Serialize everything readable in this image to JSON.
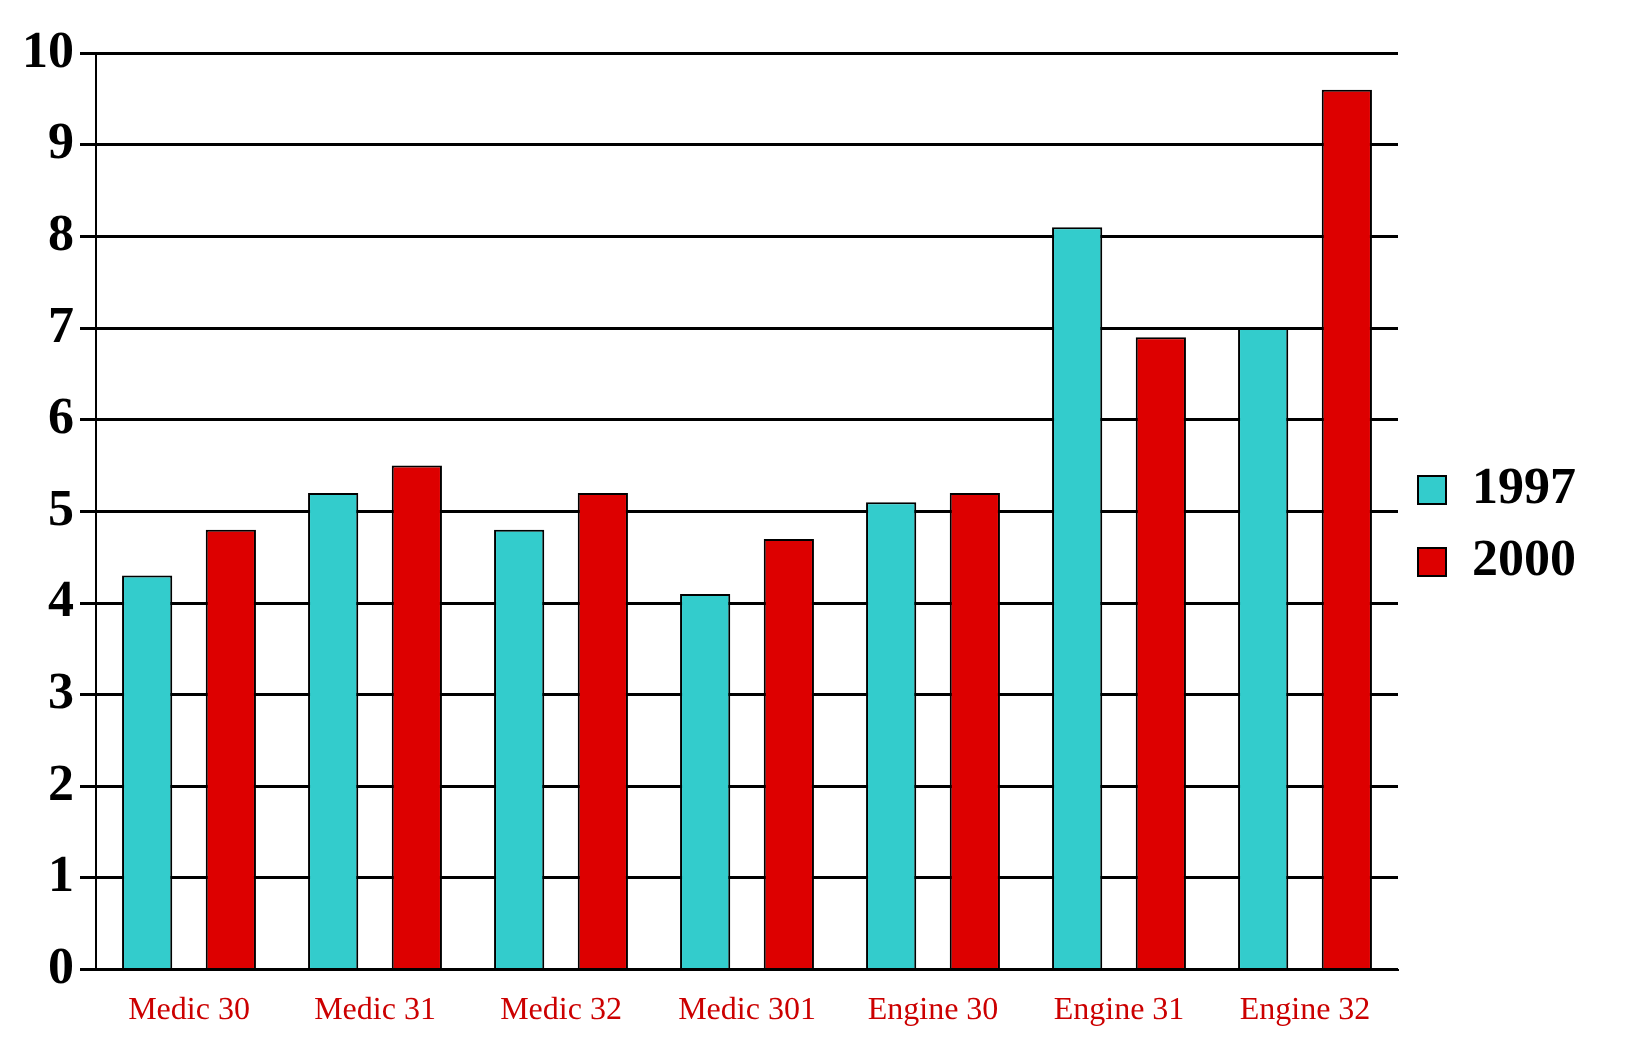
{
  "chart_data": {
    "type": "bar",
    "categories": [
      "Medic 30",
      "Medic 31",
      "Medic 32",
      "Medic 301",
      "Engine 30",
      "Engine 31",
      "Engine 32"
    ],
    "series": [
      {
        "name": "1997",
        "color": "#33cccc",
        "values": [
          4.3,
          5.2,
          4.8,
          4.1,
          5.1,
          8.1,
          7.0
        ]
      },
      {
        "name": "2000",
        "color": "#dd0000",
        "values": [
          4.8,
          5.5,
          5.2,
          4.7,
          5.2,
          6.9,
          9.6
        ]
      }
    ],
    "ylim": [
      0,
      10
    ],
    "yticks": [
      0,
      1,
      2,
      3,
      4,
      5,
      6,
      7,
      8,
      9,
      10
    ],
    "grid": "y",
    "legend": "right"
  }
}
